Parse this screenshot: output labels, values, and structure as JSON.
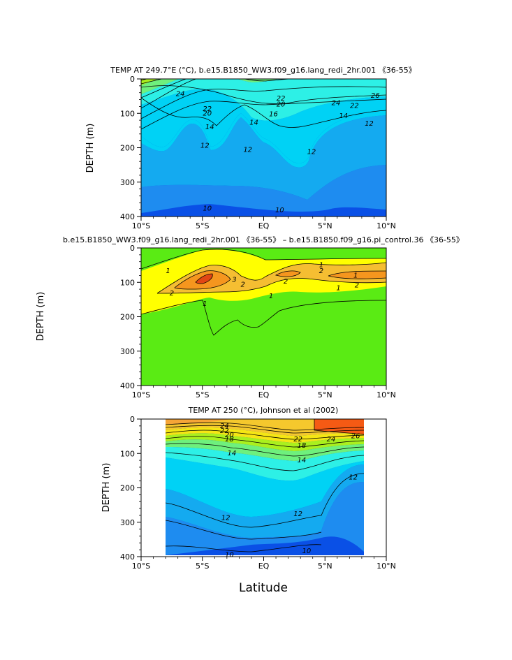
{
  "figure": {
    "xlabel": "Latitude"
  },
  "colors": {
    "temp": {
      "10": "#0a50e6",
      "11": "#1e8cf0",
      "12": "#14aaf0",
      "14": "#00d2f5",
      "16": "#2df0e6",
      "18": "#6ef07d",
      "20": "#aaf01e",
      "22": "#f5e614",
      "24": "#f5c82d",
      "26": "#f5a537",
      "28": "#f58c32",
      "30": "#f55a14"
    },
    "diff": {
      "zero": "#5aeb14",
      "one": "#ffff00",
      "two": "#f5be32",
      "three": "#f5961e",
      "four": "#e14614"
    }
  },
  "chart_data": [
    {
      "type": "contour",
      "title": "TEMP AT 249.7°E (°C), b.e15.B1850_WW3.f09_g16.lang_redi_2hr.001 《36-55》",
      "xlabel": "",
      "ylabel": "DEPTH (m)",
      "xlim": [
        -10,
        10
      ],
      "ylim": [
        400,
        0
      ],
      "x_ticks": [
        -10,
        -5,
        0,
        5,
        10
      ],
      "x_tick_labels": [
        "10°S",
        "5°S",
        "EQ",
        "5°N",
        "10°N"
      ],
      "y_ticks": [
        0,
        100,
        200,
        300,
        400
      ],
      "y_tick_labels": [
        "0",
        "100",
        "200",
        "300",
        "400"
      ],
      "contour_levels": [
        10,
        11,
        12,
        13,
        14,
        15,
        16,
        17,
        18,
        19,
        20,
        21,
        22,
        23,
        24,
        25,
        26
      ],
      "contour_labels": [
        {
          "text": "24",
          "x": -6.8,
          "y": 42
        },
        {
          "text": "22",
          "x": 1.4,
          "y": 55
        },
        {
          "text": "20",
          "x": 1.4,
          "y": 72
        },
        {
          "text": "16",
          "x": 0.8,
          "y": 100
        },
        {
          "text": "22",
          "x": -4.6,
          "y": 85
        },
        {
          "text": "20",
          "x": -4.6,
          "y": 98
        },
        {
          "text": "14",
          "x": -4.4,
          "y": 138
        },
        {
          "text": "14",
          "x": -0.8,
          "y": 125
        },
        {
          "text": "12",
          "x": -4.8,
          "y": 192
        },
        {
          "text": "12",
          "x": -1.3,
          "y": 204
        },
        {
          "text": "12",
          "x": 3.9,
          "y": 210
        },
        {
          "text": "24",
          "x": 5.9,
          "y": 68
        },
        {
          "text": "26",
          "x": 9.1,
          "y": 47
        },
        {
          "text": "14",
          "x": 6.5,
          "y": 106
        },
        {
          "text": "22",
          "x": 7.4,
          "y": 76
        },
        {
          "text": "12",
          "x": 8.6,
          "y": 128
        },
        {
          "text": "10",
          "x": -4.6,
          "y": 375
        },
        {
          "text": "10",
          "x": 1.3,
          "y": 380
        }
      ]
    },
    {
      "type": "contour",
      "title": "b.e15.B1850_WW3.f09_g16.lang_redi_2hr.001 《36-55》 – b.e15.B1850.f09_g16.pi_control.36 《36-55》",
      "xlabel": "",
      "ylabel": "DEPTH (m)",
      "xlim": [
        -10,
        10
      ],
      "ylim": [
        400,
        0
      ],
      "x_ticks": [
        -10,
        -5,
        0,
        5,
        10
      ],
      "x_tick_labels": [
        "10°S",
        "5°S",
        "EQ",
        "5°N",
        "10°N"
      ],
      "y_ticks": [
        0,
        100,
        200,
        300,
        400
      ],
      "y_tick_labels": [
        "0",
        "100",
        "200",
        "300",
        "400"
      ],
      "contour_levels": [
        0,
        1,
        2,
        3,
        4
      ],
      "contour_labels": [
        {
          "text": "1",
          "x": -7.8,
          "y": 65
        },
        {
          "text": "2",
          "x": -7.5,
          "y": 130
        },
        {
          "text": "2",
          "x": -1.7,
          "y": 105
        },
        {
          "text": "3",
          "x": -2.4,
          "y": 90
        },
        {
          "text": "1",
          "x": -4.8,
          "y": 160
        },
        {
          "text": "1",
          "x": 0.6,
          "y": 138
        },
        {
          "text": "2",
          "x": 1.8,
          "y": 95
        },
        {
          "text": "1",
          "x": 4.7,
          "y": 48
        },
        {
          "text": "2",
          "x": 4.7,
          "y": 65
        },
        {
          "text": "1",
          "x": 6.1,
          "y": 115
        },
        {
          "text": "2",
          "x": 7.6,
          "y": 107
        },
        {
          "text": "1",
          "x": 7.5,
          "y": 78
        }
      ]
    },
    {
      "type": "contour",
      "title": "TEMP AT 250 (°C), Johnson et al (2002)",
      "xlabel": "Latitude",
      "ylabel": "DEPTH (m)",
      "xlim": [
        -10,
        10
      ],
      "ylim": [
        400,
        0
      ],
      "x_ticks": [
        -10,
        -5,
        0,
        5,
        10
      ],
      "x_tick_labels": [
        "10°S",
        "5°S",
        "EQ",
        "5°N",
        "10°N"
      ],
      "y_ticks": [
        0,
        100,
        200,
        300,
        400
      ],
      "y_tick_labels": [
        "0",
        "100",
        "200",
        "300",
        "400"
      ],
      "data_extent": {
        "x": [
          -8,
          8.2
        ],
        "y": [
          0,
          395
        ]
      },
      "contour_levels": [
        10,
        11,
        12,
        13,
        14,
        15,
        16,
        17,
        18,
        19,
        20,
        21,
        22,
        23,
        24,
        25,
        26
      ],
      "contour_labels": [
        {
          "text": "24",
          "x": -3.2,
          "y": 18
        },
        {
          "text": "22",
          "x": -3.2,
          "y": 32
        },
        {
          "text": "20",
          "x": -2.8,
          "y": 45
        },
        {
          "text": "18",
          "x": -2.8,
          "y": 57
        },
        {
          "text": "14",
          "x": -2.6,
          "y": 97
        },
        {
          "text": "22",
          "x": 2.8,
          "y": 57
        },
        {
          "text": "18",
          "x": 3.1,
          "y": 75
        },
        {
          "text": "14",
          "x": 3.1,
          "y": 118
        },
        {
          "text": "24",
          "x": 5.5,
          "y": 57
        },
        {
          "text": "26",
          "x": 7.5,
          "y": 48
        },
        {
          "text": "12",
          "x": 7.3,
          "y": 168
        },
        {
          "text": "12",
          "x": -3.1,
          "y": 285
        },
        {
          "text": "12",
          "x": 2.8,
          "y": 274
        },
        {
          "text": "10",
          "x": 3.5,
          "y": 382
        },
        {
          "text": "10",
          "x": -2.8,
          "y": 393
        }
      ]
    }
  ]
}
